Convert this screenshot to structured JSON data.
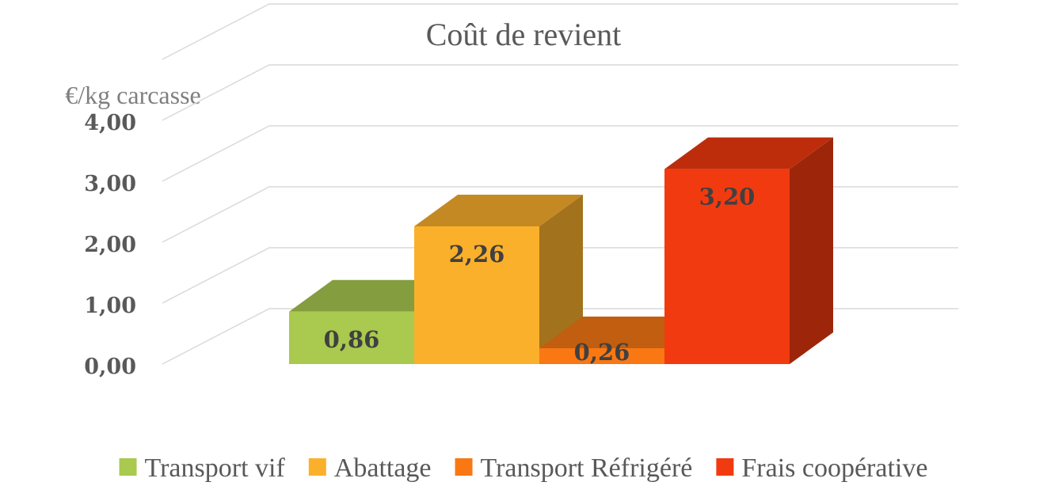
{
  "chart_data": {
    "type": "bar",
    "title": "Coût de revient",
    "ylabel": "€/kg carcasse",
    "xlabel": "",
    "ylim": [
      0,
      4
    ],
    "yticks": [
      "0,00",
      "1,00",
      "2,00",
      "3,00",
      "4,00"
    ],
    "grid": true,
    "legend_position": "bottom",
    "series": [
      {
        "name": "Transport vif",
        "value": 0.86,
        "label": "0,86",
        "color": "#a9c94f"
      },
      {
        "name": "Abattage",
        "value": 2.26,
        "label": "2,26",
        "color": "#fbb02b"
      },
      {
        "name": "Transport Réfrigéré",
        "value": 0.26,
        "label": "0,26",
        "color": "#f97813"
      },
      {
        "name": "Frais coopérative",
        "value": 3.2,
        "label": "3,20",
        "color": "#f23a10"
      }
    ]
  }
}
